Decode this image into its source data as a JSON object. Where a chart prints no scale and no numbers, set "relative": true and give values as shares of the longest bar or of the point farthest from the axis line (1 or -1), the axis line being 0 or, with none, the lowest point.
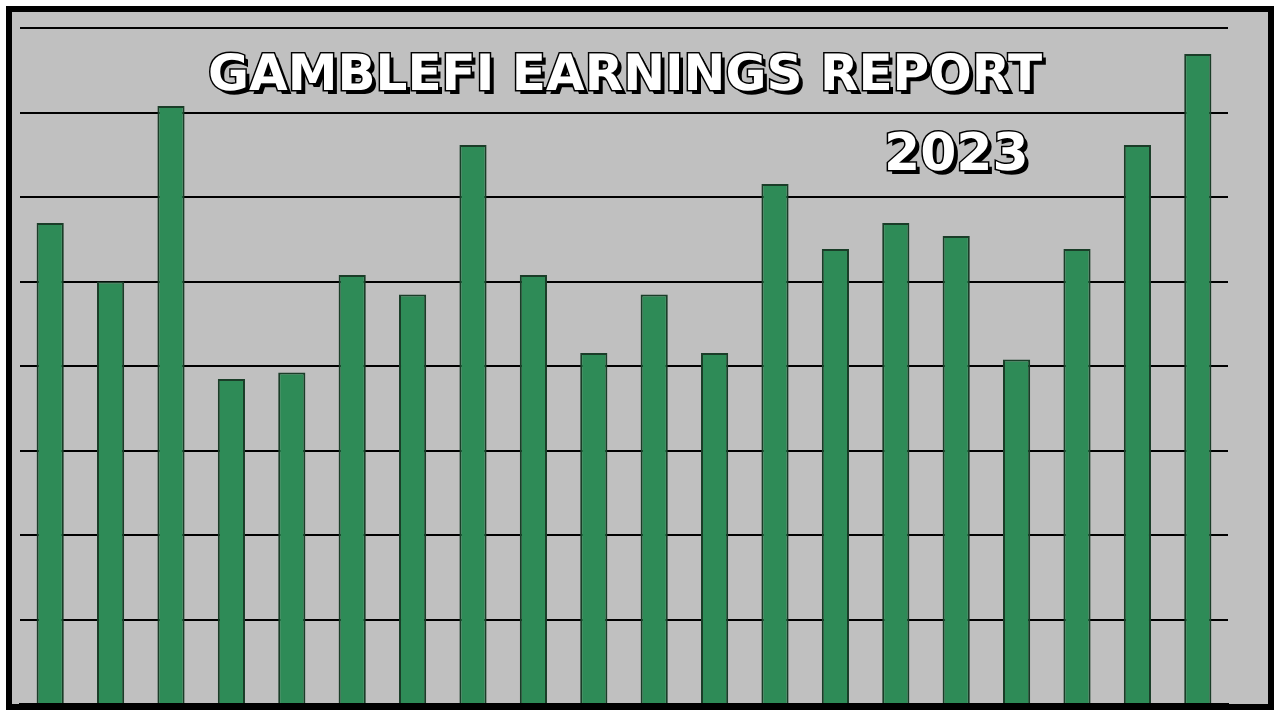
{
  "chart_data": {
    "type": "bar",
    "title": "GAMBLEFI EARNINGS REPORT",
    "subtitle": "2023",
    "categories": [
      null,
      null,
      null,
      null,
      null,
      null,
      null,
      null,
      null,
      null,
      null,
      null,
      null,
      null,
      null,
      null,
      null,
      null,
      null,
      null
    ],
    "values": [
      0.74,
      0.65,
      0.92,
      0.5,
      0.51,
      0.66,
      0.63,
      0.86,
      0.66,
      0.54,
      0.63,
      0.54,
      0.8,
      0.7,
      0.74,
      0.72,
      0.53,
      0.7,
      0.86,
      1
    ],
    "color": "#2e8b57",
    "relative": true,
    "grid": "y",
    "legend": false
  }
}
